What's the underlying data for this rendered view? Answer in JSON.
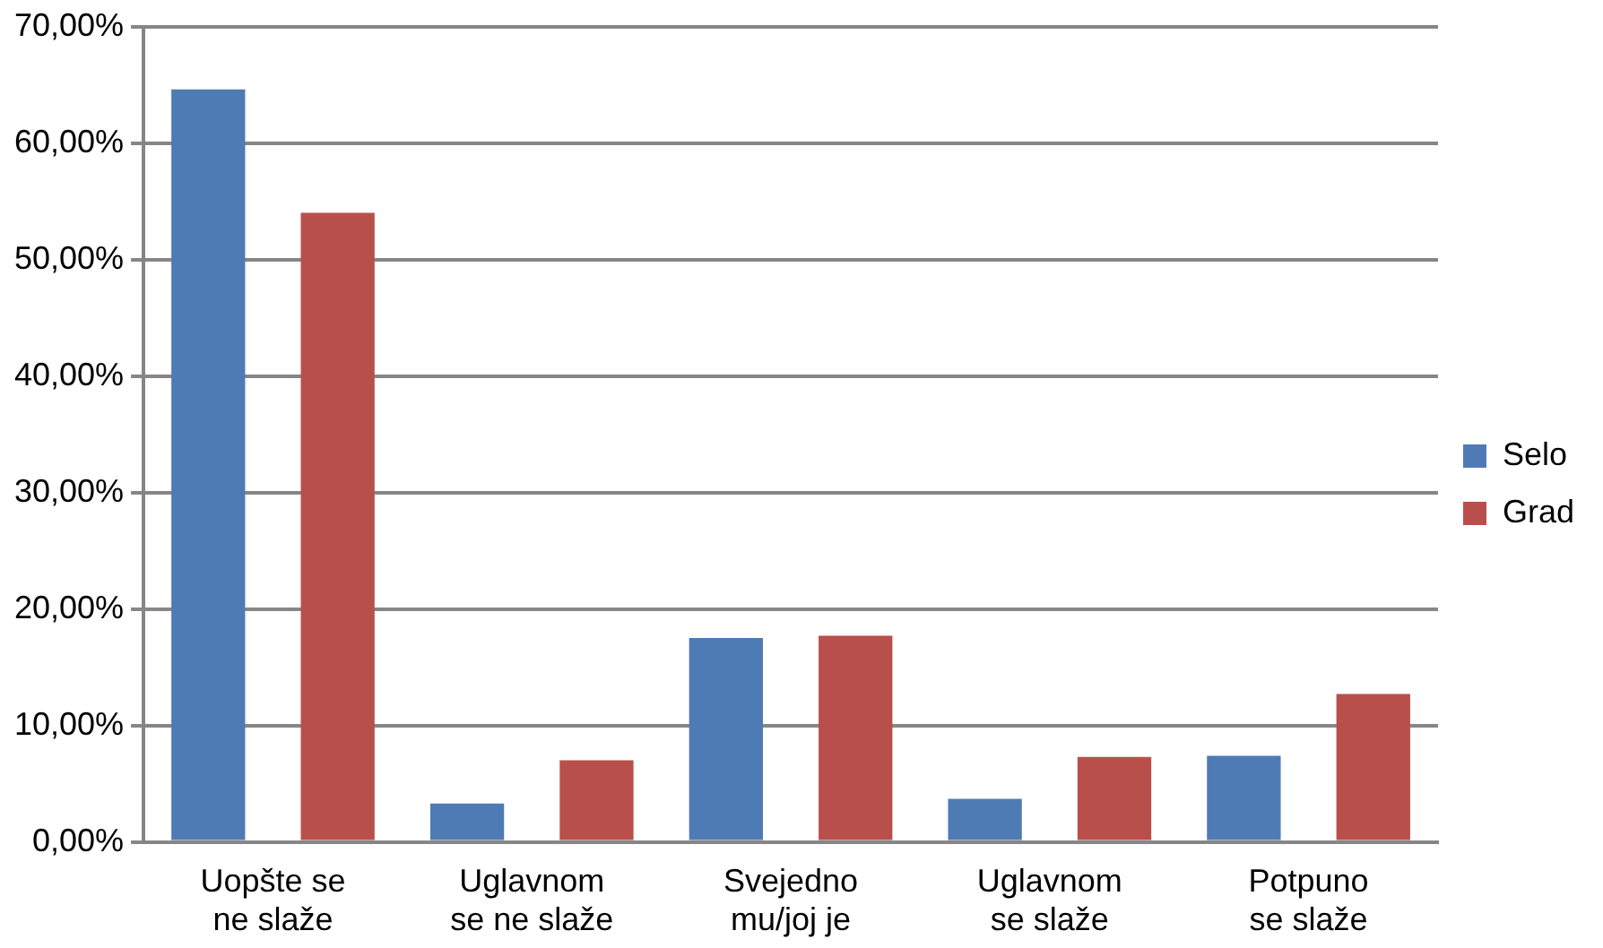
{
  "chart_data": {
    "type": "bar",
    "categories": [
      "Uopšte se ne slaže",
      "Uglavnom se ne slaže",
      "Svejedno mu/joj je",
      "Uglavnom se slaže",
      "Potpuno se slaže"
    ],
    "series": [
      {
        "name": "Selo",
        "color": "#4f7bb5",
        "values": [
          64.6,
          3.3,
          17.5,
          3.7,
          7.4
        ]
      },
      {
        "name": "Grad",
        "color": "#b94f4b",
        "values": [
          54.0,
          7.0,
          17.7,
          7.3,
          12.7
        ]
      }
    ],
    "ylim": [
      0,
      70
    ],
    "yticks": [
      {
        "value": 0,
        "label": "0,00%"
      },
      {
        "value": 10,
        "label": "10,00%"
      },
      {
        "value": 20,
        "label": "20,00%"
      },
      {
        "value": 30,
        "label": "30,00%"
      },
      {
        "value": 40,
        "label": "40,00%"
      },
      {
        "value": 50,
        "label": "50,00%"
      },
      {
        "value": 60,
        "label": "60,00%"
      },
      {
        "value": 70,
        "label": "70,00%"
      }
    ],
    "grid": "y",
    "legend": "right"
  }
}
